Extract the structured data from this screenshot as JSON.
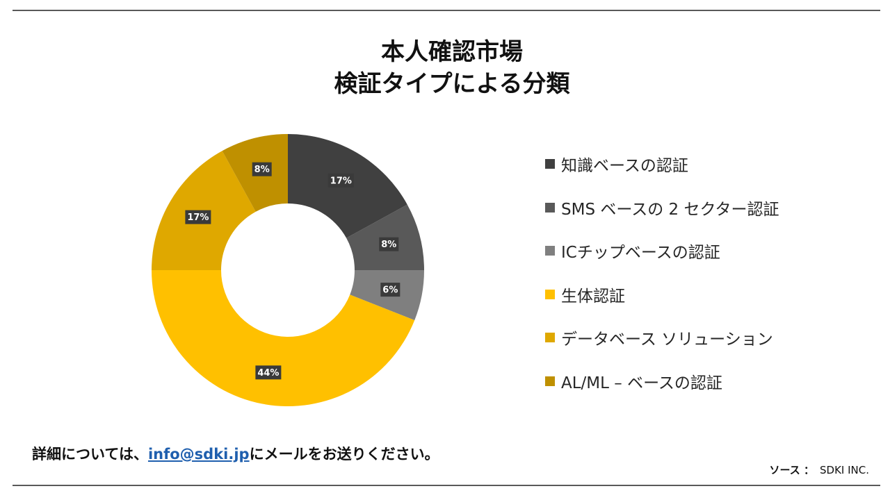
{
  "title": {
    "line1": "本人確認市場",
    "line2": "検証タイプによる分類"
  },
  "chart_data": {
    "type": "pie",
    "donut": true,
    "legend_position": "right",
    "categories": [
      "知識ベースの認証",
      "SMS ベースの 2 セクター認証",
      "ICチップベースの認証",
      "生体認証",
      "データベース ソリューション",
      "AL/ML – ベースの認証"
    ],
    "values": [
      17,
      8,
      6,
      44,
      17,
      8
    ],
    "value_labels": [
      "17%",
      "8%",
      "6%",
      "44%",
      "17%",
      "8%"
    ],
    "colors": [
      "#404040",
      "#595959",
      "#7f7f7f",
      "#ffc000",
      "#dfa800",
      "#bf9000"
    ]
  },
  "footer": {
    "note_prefix": "詳細については、",
    "email": "info@sdki.jp",
    "note_suffix": "にメールをお送りください。",
    "source_label": "ソース ：",
    "source_value": "SDKI INC."
  }
}
